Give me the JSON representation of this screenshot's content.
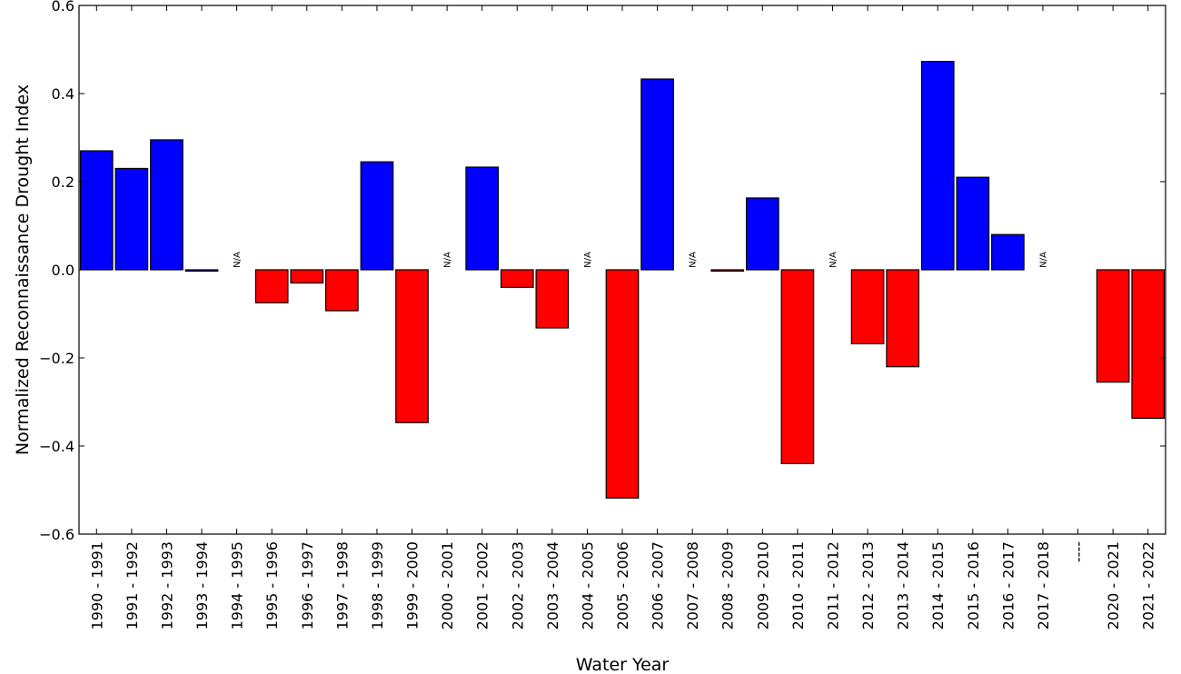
{
  "chart_data": {
    "type": "bar",
    "title": "",
    "xlabel": "Water Year",
    "ylabel": "Normalized Reconnaissance Drought Index",
    "ylim": [
      -0.6,
      0.6
    ],
    "yticks": [
      "0.6",
      "0.4",
      "0.2",
      "0.0",
      "−0.2",
      "−0.4",
      "−0.6"
    ],
    "ytick_values": [
      0.6,
      0.4,
      0.2,
      0.0,
      -0.2,
      -0.4,
      -0.6
    ],
    "grid": false,
    "positive_color": "#0000ff",
    "negative_color": "#ff0000",
    "missing_label": "N/A",
    "categories": [
      "1990 - 1991",
      "1991 - 1992",
      "1992 - 1993",
      "1993 - 1994",
      "1994 - 1995",
      "1995 - 1996",
      "1996 - 1997",
      "1997 - 1998",
      "1998 - 1999",
      "1999 - 2000",
      "2000 - 2001",
      "2001 - 2002",
      "2002 - 2003",
      "2003 - 2004",
      "2004 - 2005",
      "2005 - 2006",
      "2006 - 2007",
      "2007 - 2008",
      "2008 - 2009",
      "2009 - 2010",
      "2010 - 2011",
      "2011 - 2012",
      "2012 - 2013",
      "2013 - 2014",
      "2014 - 2015",
      "2015 - 2016",
      "2016 - 2017",
      "2017 - 2018",
      "----",
      "2020 - 2021",
      "2021 - 2022"
    ],
    "values": [
      0.27,
      0.23,
      0.295,
      0.0,
      null,
      -0.075,
      -0.03,
      -0.093,
      0.245,
      -0.347,
      null,
      0.233,
      -0.04,
      -0.132,
      null,
      -0.518,
      0.433,
      null,
      -0.002,
      0.163,
      -0.44,
      null,
      -0.168,
      -0.22,
      0.473,
      0.21,
      0.08,
      null,
      null,
      -0.255,
      -0.337
    ]
  }
}
